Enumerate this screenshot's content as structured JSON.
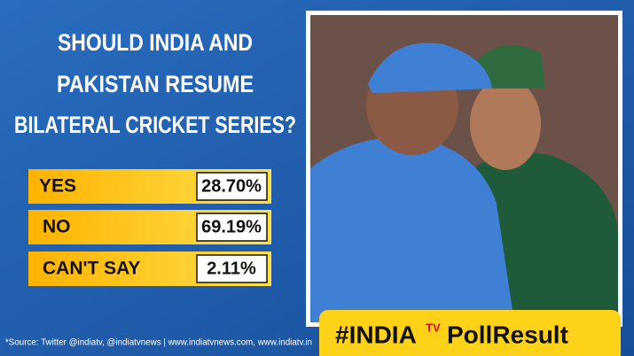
{
  "title": [
    "SHOULD INDIA AND",
    "PAKISTAN RESUME",
    "BILATERAL CRICKET SERIES?"
  ],
  "poll": {
    "options": [
      {
        "label": "YES",
        "result": "28.70%"
      },
      {
        "label": "NO",
        "result": "69.19%"
      },
      {
        "label": "CAN'T SAY",
        "result": "2.11%"
      }
    ]
  },
  "source": "*Source: Twitter @indiatv, @indiatvnews | www.indiatvnews.com, www.indiatv.in",
  "badge": {
    "hashtag": "#INDIA",
    "brand": "TV",
    "tag": "PollResult"
  }
}
